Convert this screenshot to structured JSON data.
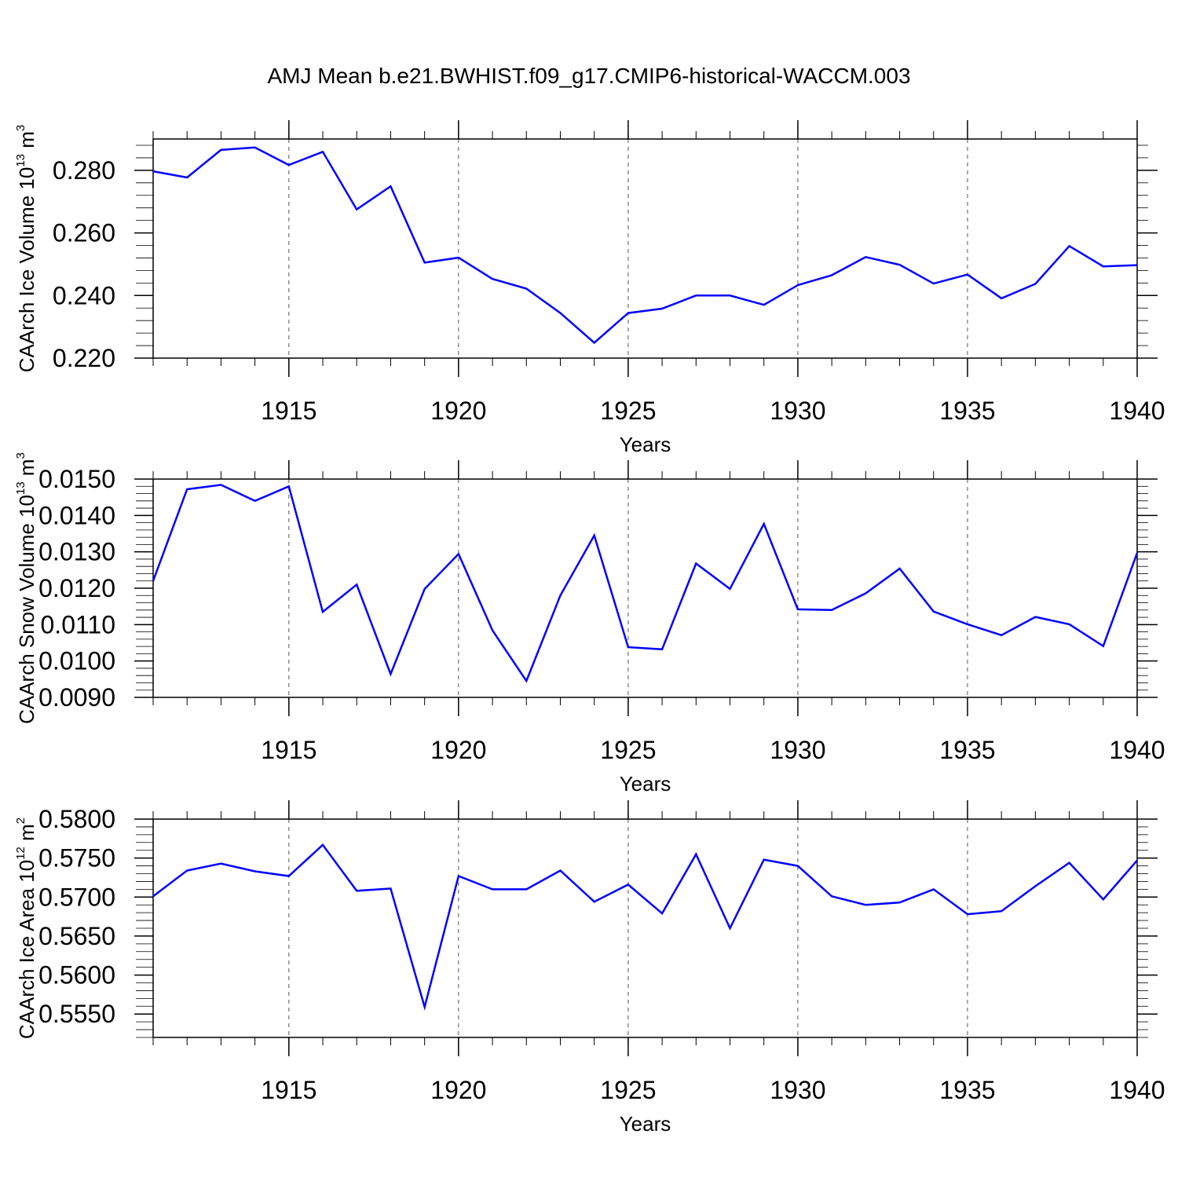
{
  "figure_title": "AMJ Mean b.e21.BWHIST.f09_g17.CMIP6-historical-WACCM.003",
  "colors": {
    "line": "#0000ff",
    "axis": "#000000",
    "grid": "#555555",
    "background": "#ffffff"
  },
  "chart_data": [
    {
      "type": "line",
      "title": "",
      "xlabel": "Years",
      "ylabel": {
        "text": "CAArch Ice Volume 10",
        "sup1": "13",
        "unit": " m",
        "sup2": "3"
      },
      "xlim": [
        1911,
        1940
      ],
      "ylim": [
        0.22,
        0.29
      ],
      "xticks": [
        1915,
        1920,
        1925,
        1930,
        1935,
        1940
      ],
      "xtick_labels": [
        "1915",
        "1920",
        "1925",
        "1930",
        "1935",
        "1940"
      ],
      "yticks": [
        0.22,
        0.24,
        0.26,
        0.28
      ],
      "ytick_labels": [
        "0.220",
        "0.240",
        "0.260",
        "0.280"
      ],
      "grid": "vertical dashed at major x ticks",
      "series": [
        {
          "x": [
            1911,
            1912,
            1913,
            1914,
            1915,
            1916,
            1917,
            1918,
            1919,
            1920,
            1921,
            1922,
            1923,
            1924,
            1925,
            1926,
            1927,
            1928,
            1929,
            1930,
            1931,
            1932,
            1933,
            1934,
            1935,
            1936,
            1937,
            1938,
            1939,
            1940
          ],
          "values": [
            0.2797,
            0.2777,
            0.2865,
            0.2873,
            0.2817,
            0.2859,
            0.2675,
            0.2749,
            0.2505,
            0.2521,
            0.2453,
            0.2422,
            0.2344,
            0.2249,
            0.2344,
            0.2358,
            0.24,
            0.24,
            0.237,
            0.2433,
            0.2465,
            0.2523,
            0.2498,
            0.2438,
            0.2467,
            0.2391,
            0.2437,
            0.2558,
            0.2493,
            0.2497
          ]
        }
      ]
    },
    {
      "type": "line",
      "title": "",
      "xlabel": "Years",
      "ylabel": {
        "text": "CAArch Snow Volume 10",
        "sup1": "13",
        "unit": " m",
        "sup2": "3"
      },
      "xlim": [
        1911,
        1940
      ],
      "ylim": [
        0.009,
        0.015
      ],
      "xticks": [
        1915,
        1920,
        1925,
        1930,
        1935,
        1940
      ],
      "xtick_labels": [
        "1915",
        "1920",
        "1925",
        "1930",
        "1935",
        "1940"
      ],
      "yticks": [
        0.009,
        0.01,
        0.011,
        0.012,
        0.013,
        0.014,
        0.015
      ],
      "ytick_labels": [
        "0.0090",
        "0.0100",
        "0.0110",
        "0.0120",
        "0.0130",
        "0.0140",
        "0.0150"
      ],
      "grid": "vertical dashed at major x ticks",
      "series": [
        {
          "x": [
            1911,
            1912,
            1913,
            1914,
            1915,
            1916,
            1917,
            1918,
            1919,
            1920,
            1921,
            1922,
            1923,
            1924,
            1925,
            1926,
            1927,
            1928,
            1929,
            1930,
            1931,
            1932,
            1933,
            1934,
            1935,
            1936,
            1937,
            1938,
            1939,
            1940
          ],
          "values": [
            0.0122,
            0.01472,
            0.01484,
            0.0144,
            0.0148,
            0.01135,
            0.0121,
            0.00964,
            0.01198,
            0.01294,
            0.01084,
            0.00945,
            0.0118,
            0.01345,
            0.01038,
            0.01032,
            0.01268,
            0.01198,
            0.01377,
            0.01142,
            0.0114,
            0.01186,
            0.01254,
            0.01136,
            0.01101,
            0.01071,
            0.01121,
            0.01101,
            0.01041,
            0.01297
          ]
        }
      ]
    },
    {
      "type": "line",
      "title": "",
      "xlabel": "Years",
      "ylabel": {
        "text": "CAArch Ice Area 10",
        "sup1": "12",
        "unit": " m",
        "sup2": "2"
      },
      "xlim": [
        1911,
        1940
      ],
      "ylim": [
        0.552,
        0.58
      ],
      "xticks": [
        1915,
        1920,
        1925,
        1930,
        1935,
        1940
      ],
      "xtick_labels": [
        "1915",
        "1920",
        "1925",
        "1930",
        "1935",
        "1940"
      ],
      "yticks": [
        0.555,
        0.56,
        0.565,
        0.57,
        0.575,
        0.58
      ],
      "ytick_labels": [
        "0.5550",
        "0.5600",
        "0.5650",
        "0.5700",
        "0.5750",
        "0.5800"
      ],
      "grid": "vertical dashed at major x ticks",
      "series": [
        {
          "x": [
            1911,
            1912,
            1913,
            1914,
            1915,
            1916,
            1917,
            1918,
            1919,
            1920,
            1921,
            1922,
            1923,
            1924,
            1925,
            1926,
            1927,
            1928,
            1929,
            1930,
            1931,
            1932,
            1933,
            1934,
            1935,
            1936,
            1937,
            1938,
            1939,
            1940
          ],
          "values": [
            0.5701,
            0.5734,
            0.5743,
            0.5733,
            0.5727,
            0.5767,
            0.5708,
            0.5711,
            0.5559,
            0.5727,
            0.571,
            0.571,
            0.5734,
            0.5694,
            0.5716,
            0.5679,
            0.5755,
            0.566,
            0.5748,
            0.574,
            0.5701,
            0.569,
            0.5693,
            0.571,
            0.5678,
            0.5682,
            0.5714,
            0.5744,
            0.5697,
            0.5747
          ]
        }
      ]
    }
  ]
}
